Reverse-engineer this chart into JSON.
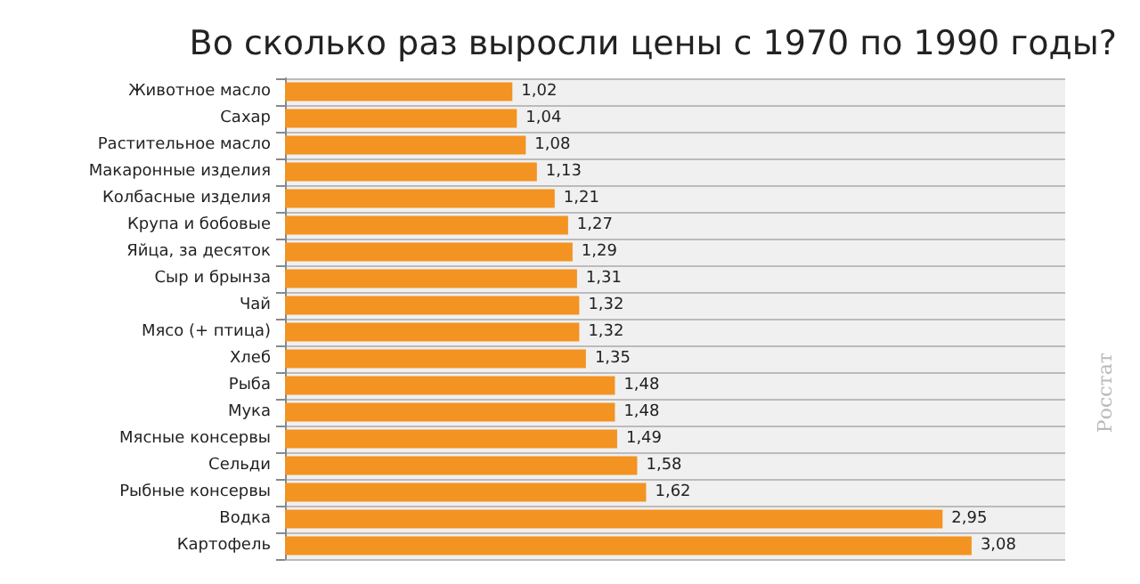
{
  "chart_data": {
    "type": "bar",
    "orientation": "horizontal",
    "title": "Во сколько раз выросли цены с 1970 по 1990 годы?",
    "categories": [
      "Животное масло",
      "Сахар",
      "Растительное масло",
      "Макаронные изделия",
      "Колбасные изделия",
      "Крупа и бобовые",
      "Яйца, за десяток",
      "Сыр и брынза",
      "Чай",
      "Мясо (+ птица)",
      "Хлеб",
      "Рыба",
      "Мука",
      "Мясные консервы",
      "Сельди",
      "Рыбные консервы",
      "Водка",
      "Картофель"
    ],
    "values": [
      1.02,
      1.04,
      1.08,
      1.13,
      1.21,
      1.27,
      1.29,
      1.31,
      1.32,
      1.32,
      1.35,
      1.48,
      1.48,
      1.49,
      1.58,
      1.62,
      2.95,
      3.08
    ],
    "value_labels": [
      "1,02",
      "1,04",
      "1,08",
      "1,13",
      "1,21",
      "1,27",
      "1,29",
      "1,31",
      "1,32",
      "1,32",
      "1,35",
      "1,48",
      "1,48",
      "1,49",
      "1,58",
      "1,62",
      "2,95",
      "3,08"
    ],
    "color": "#f39322",
    "grid": true,
    "annotations": [
      "Росстат"
    ]
  }
}
